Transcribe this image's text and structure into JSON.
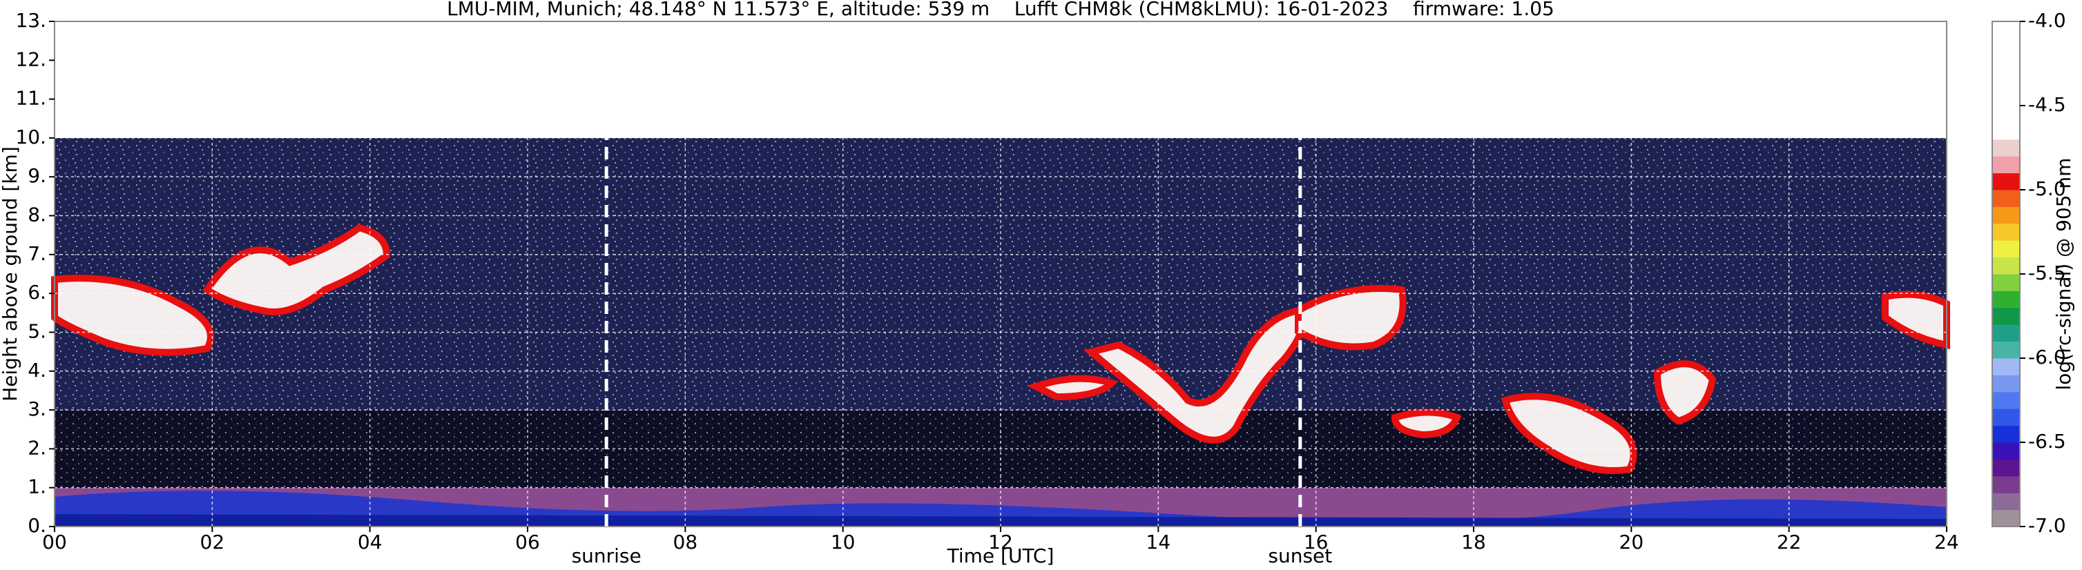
{
  "chart_data": {
    "type": "heatmap",
    "title": "LMU-MIM, Munich; 48.148° N 11.573° E, altitude: 539 m    Lufft CHM8k (CHM8kLMU): 16-01-2023    firmware: 1.05",
    "xlabel": "Time [UTC]",
    "ylabel": "Height above ground [km]",
    "xlim": [
      0,
      24
    ],
    "xticks": [
      {
        "value": 0,
        "label": "00"
      },
      {
        "value": 2,
        "label": "02"
      },
      {
        "value": 4,
        "label": "04"
      },
      {
        "value": 6,
        "label": "06"
      },
      {
        "value": 8,
        "label": "08"
      },
      {
        "value": 10,
        "label": "10"
      },
      {
        "value": 12,
        "label": "12"
      },
      {
        "value": 14,
        "label": "14"
      },
      {
        "value": 16,
        "label": "16"
      },
      {
        "value": 18,
        "label": "18"
      },
      {
        "value": 20,
        "label": "20"
      },
      {
        "value": 22,
        "label": "22"
      },
      {
        "value": 24,
        "label": "24"
      }
    ],
    "ylim": [
      0,
      13
    ],
    "yticks": [
      {
        "value": 0,
        "label": "0."
      },
      {
        "value": 1,
        "label": "1."
      },
      {
        "value": 2,
        "label": "2."
      },
      {
        "value": 3,
        "label": "3."
      },
      {
        "value": 4,
        "label": "4."
      },
      {
        "value": 5,
        "label": "5."
      },
      {
        "value": 6,
        "label": "6."
      },
      {
        "value": 7,
        "label": "7."
      },
      {
        "value": 8,
        "label": "8."
      },
      {
        "value": 9,
        "label": "9."
      },
      {
        "value": 10,
        "label": "10."
      },
      {
        "value": 11,
        "label": "11."
      },
      {
        "value": 12,
        "label": "12."
      },
      {
        "value": 13,
        "label": "13."
      }
    ],
    "grid": true,
    "annotations": [
      {
        "text": "sunrise",
        "x": 7.0
      },
      {
        "text": "sunset",
        "x": 15.8
      }
    ],
    "colorbar": {
      "label": "log(rc-signal) @ 905 nm",
      "lim": [
        -7,
        -4
      ],
      "ticks": [
        {
          "value": -4,
          "label": "-4.0"
        },
        -4.5,
        {
          "value": -5,
          "label": "-5.0"
        },
        -5.5,
        {
          "value": -6,
          "label": "-6.0"
        },
        -6.5,
        {
          "value": -7,
          "label": "-7.0"
        }
      ],
      "colors": [
        "#a0909c",
        "#8e6a98",
        "#7a3c8e",
        "#5c1590",
        "#3a10b8",
        "#1830d8",
        "#3058e8",
        "#5078f0",
        "#7898f0",
        "#a0b8f4",
        "#48b4a8",
        "#20a088",
        "#109848",
        "#30b030",
        "#80d040",
        "#c8e448",
        "#f0f040",
        "#f8c828",
        "#f89818",
        "#f06018",
        "#e81010",
        "#f0a0a8",
        "#ecd0d0",
        "#ffffff",
        "#ffffff",
        "#ffffff",
        "#ffffff",
        "#ffffff",
        "#ffffff",
        "#ffffff"
      ]
    }
  }
}
